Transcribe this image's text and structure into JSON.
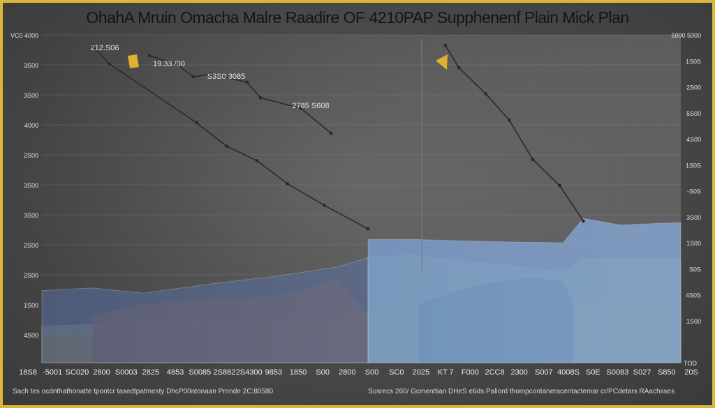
{
  "header": {
    "title": "OhahA Mruin Omacha Malre Raadire OF 4210PAP Supphenenf Plain Mick Plan"
  },
  "footer": {
    "left": "Sach tes ocdnthathonatte tpontcr tasedtpatmesty DhcP00ntonaan Prnnde 2C:80580",
    "right": "Susrecs 260/ Gcmenttian DHeS   e6ds   Paliord thompcontaneracentactemar cr/PCdetars RAachsses"
  },
  "colors": {
    "frame": "#d8b83a",
    "background": "#4a4a4a",
    "line": "#2a2a2a",
    "title": "#141414",
    "blue": "#6f90c2",
    "green": "#6f9d62",
    "teal": "#0f5a4c",
    "orange": "#c8541c",
    "gold": "#d8a01c",
    "cream": "#c8c2a8",
    "slate": "#4f5f80",
    "marker": "#e0b030"
  },
  "chart_data": {
    "type": "area",
    "title": "OhahA Mruin Omacha Malre Raadire OF 4210PAP Supphenenf Plain Mick Plan",
    "xlabel": "",
    "ylabel": "",
    "x_ticks": [
      "18S8",
      "·5001",
      "SC020",
      "2800",
      "S0003",
      "2825",
      "4853",
      "S0085",
      "2S882",
      "2S4300",
      "9853",
      "1850",
      "S00",
      "2800",
      "S00",
      "SC0",
      "2025",
      "KT 7",
      "F000",
      "2CC8",
      "2300",
      "S007",
      "4008S",
      "S0E",
      "S0083",
      "S027",
      "S850",
      "20S"
    ],
    "y_ticks_left": [
      "VC0 4000",
      "3S00",
      "3S00",
      "4000",
      "2S00",
      "3S00",
      "3S00",
      "2S00",
      "2S00",
      "1S00",
      "4S00"
    ],
    "y_ticks_right": [
      "5000 5000",
      "1S0S",
      "2S00",
      "5S00",
      "4S00",
      "1S0S",
      "-S0S",
      "3S00",
      "1S00",
      "S0S",
      "4S0S",
      "1S00"
    ],
    "y_ticks_right_bottom": "TOD",
    "ylim": [
      0,
      5000
    ],
    "annotations": [
      "212.S06",
      "19.33 /00",
      "S3S0 3085",
      "2785 S608"
    ],
    "series": [
      {
        "name": "",
        "kind": "line",
        "color": "#2a2a2a",
        "x": [
          0.75,
          1.0,
          2.3,
          2.75,
          3.2,
          3.65,
          4.2,
          4.85
        ],
        "y": [
          4840,
          4560,
          3660,
          3300,
          3080,
          2730,
          2400,
          2040
        ]
      },
      {
        "name": "",
        "kind": "line",
        "color": "#2a2a2a",
        "x": [
          1.6,
          2.0,
          2.25,
          2.5,
          3.05,
          3.25,
          3.85,
          4.3
        ],
        "y": [
          4680,
          4560,
          4360,
          4400,
          4280,
          4040,
          3880,
          3500
        ]
      },
      {
        "name": "",
        "kind": "line",
        "color": "#2a2a2a",
        "x": [
          6.0,
          6.2,
          6.6,
          6.95,
          7.3,
          7.7,
          8.05
        ],
        "y": [
          4840,
          4500,
          4100,
          3700,
          3100,
          2700,
          2160
        ]
      },
      {
        "name": "",
        "kind": "area",
        "color": "#c8c2a8",
        "x": [
          0,
          1,
          2,
          3,
          4.85,
          5.5,
          6.5,
          7.5,
          8.05,
          9,
          9.5
        ],
        "y": [
          560,
          600,
          620,
          630,
          520,
          900,
          860,
          830,
          760,
          700,
          800
        ]
      },
      {
        "name": "",
        "kind": "area",
        "color": "#d8a01c",
        "x": [
          0,
          1,
          2,
          3,
          4,
          4.85,
          5.5,
          6.5,
          7.5,
          8.05,
          9,
          9.5
        ],
        "y": [
          420,
          480,
          540,
          620,
          700,
          760,
          820,
          860,
          900,
          940,
          1000,
          1100
        ]
      },
      {
        "name": "",
        "kind": "area",
        "color": "#c8541c",
        "x": [
          0.75,
          1.5,
          2.5,
          3.5,
          4.4,
          4.85
        ],
        "y": [
          720,
          880,
          960,
          1000,
          1260,
          700
        ]
      },
      {
        "name": "",
        "kind": "area",
        "color": "#4f5f80",
        "x": [
          0,
          0.75,
          1.5,
          2.5,
          3.5,
          4.4,
          4.85
        ],
        "y": [
          1100,
          1140,
          1060,
          1200,
          1320,
          1460,
          1600
        ]
      },
      {
        "name": "",
        "kind": "area",
        "color": "#6f9d62",
        "x": [
          4.85,
          5.5,
          6.2,
          7.0,
          7.75,
          8.05,
          8.6,
          9.5
        ],
        "y": [
          1620,
          1640,
          1560,
          1480,
          1380,
          1580,
          1600,
          1580
        ]
      },
      {
        "name": "",
        "kind": "area",
        "color": "#0f5a4c",
        "x": [
          5.6,
          6.2,
          6.8,
          7.3,
          7.75,
          7.9
        ],
        "y": [
          900,
          1100,
          1250,
          1300,
          1250,
          900
        ]
      },
      {
        "name": "",
        "kind": "area",
        "color": "#6f90c2",
        "x": [
          4.85,
          5.5,
          6.2,
          7.0,
          7.75,
          8.05,
          8.6,
          9.5
        ],
        "y": [
          1880,
          1880,
          1860,
          1840,
          1830,
          2200,
          2100,
          2140
        ]
      }
    ]
  }
}
